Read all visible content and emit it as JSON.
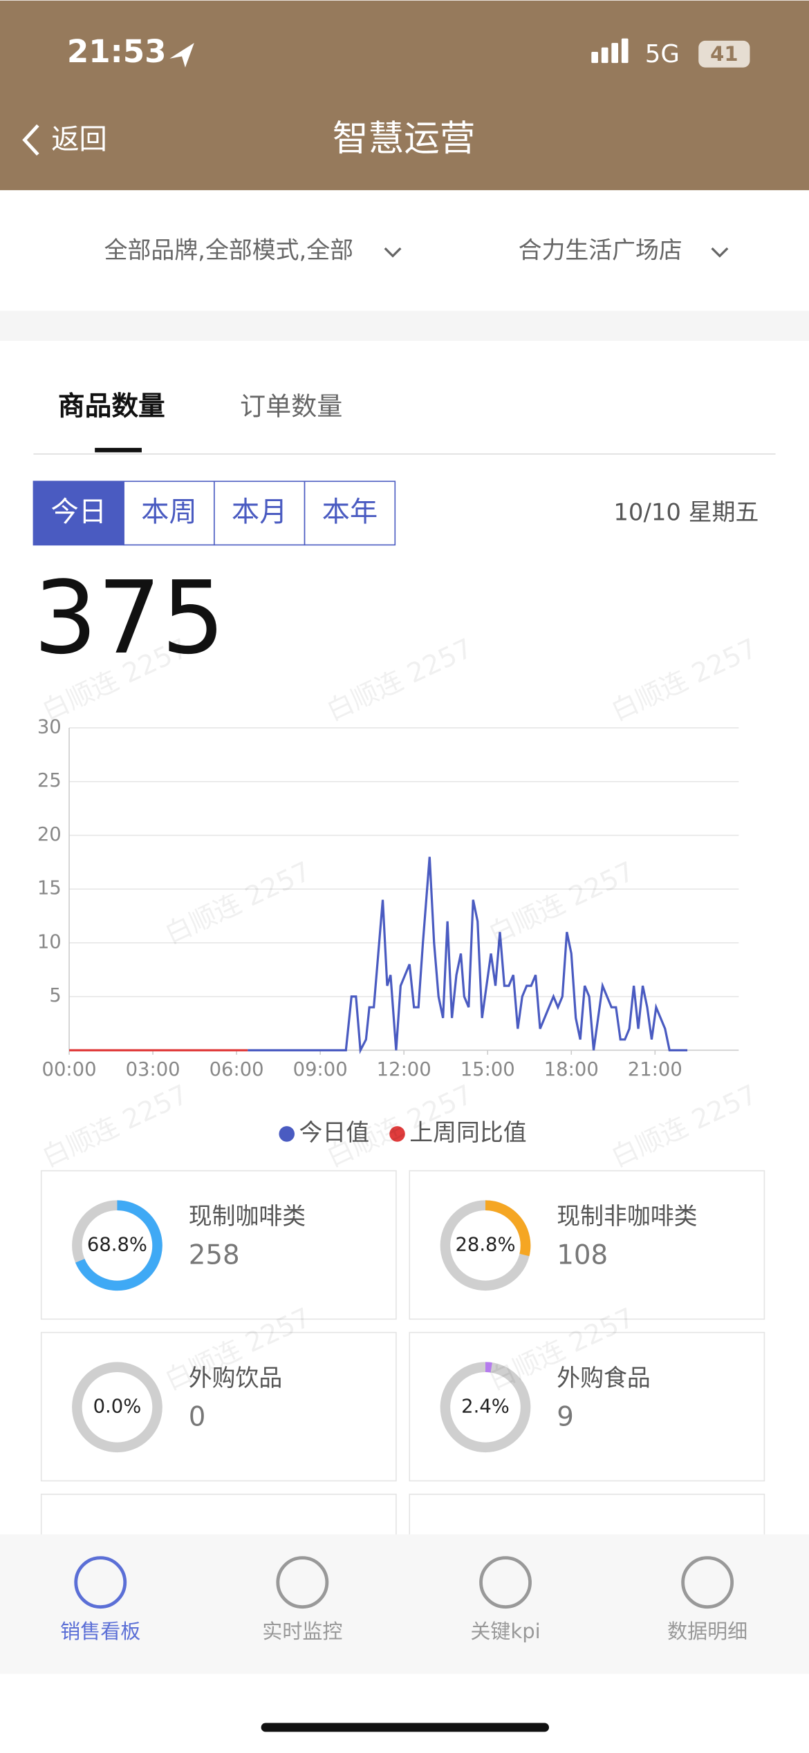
{
  "status_bar": {
    "time": "21:53",
    "network": "5G",
    "battery": "41"
  },
  "header": {
    "back": "返回",
    "title": "智慧运营"
  },
  "filters": [
    "全部品牌,全部模式,全部",
    "合力生活广场店"
  ],
  "tabs": [
    "商品数量",
    "订单数量"
  ],
  "periods": [
    "今日",
    "本周",
    "本月",
    "本年"
  ],
  "date": "10/10 星期五",
  "total": 375,
  "watermark": "白顺连 2257",
  "chart_data": {
    "type": "line",
    "xlim": [
      0,
      24
    ],
    "xticks": [
      {
        "value": 0,
        "label": "00:00"
      },
      {
        "value": 3,
        "label": "03:00"
      },
      {
        "value": 6,
        "label": "06:00"
      },
      {
        "value": 9,
        "label": "09:00"
      },
      {
        "value": 12,
        "label": "12:00"
      },
      {
        "value": 15,
        "label": "15:00"
      },
      {
        "value": 18,
        "label": "18:00"
      },
      {
        "value": 21,
        "label": "21:00"
      }
    ],
    "ylim": [
      0,
      30
    ],
    "yticks": [
      5,
      10,
      15,
      20,
      25,
      30
    ],
    "grid": true,
    "legend": "bottom",
    "series": [
      {
        "name": "今日值",
        "color": "#4a5bc1",
        "x": [
          6.4,
          9.92,
          10.12,
          10.28,
          10.44,
          10.64,
          10.76,
          10.92,
          11.08,
          11.24,
          11.4,
          11.52,
          11.72,
          11.88,
          12.04,
          12.2,
          12.36,
          12.52,
          12.68,
          12.92,
          13.08,
          13.24,
          13.4,
          13.56,
          13.72,
          13.88,
          14.04,
          14.16,
          14.32,
          14.48,
          14.64,
          14.8,
          14.96,
          15.12,
          15.28,
          15.44,
          15.6,
          15.76,
          15.92,
          16.08,
          16.24,
          16.4,
          16.56,
          16.72,
          16.88,
          17.04,
          17.2,
          17.36,
          17.52,
          17.68,
          17.84,
          18,
          18.16,
          18.32,
          18.48,
          18.64,
          18.8,
          18.96,
          19.12,
          19.28,
          19.44,
          19.6,
          19.76,
          19.92,
          20.08,
          20.24,
          20.4,
          20.56,
          20.72,
          20.88,
          21.04,
          21.2,
          21.36,
          21.52,
          22.16
        ],
        "values": [
          0,
          0,
          5,
          5,
          0,
          1,
          4,
          4,
          9,
          14,
          6,
          7,
          0,
          6,
          7,
          8,
          4,
          4,
          10,
          18,
          10,
          5,
          3,
          12,
          3,
          7,
          9,
          5,
          4,
          14,
          12,
          3,
          6,
          9,
          6,
          11,
          6,
          6,
          7,
          2,
          5,
          6,
          6,
          7,
          2,
          3,
          4,
          5,
          4,
          5,
          11,
          9,
          3,
          1,
          6,
          5,
          0,
          3,
          6,
          5,
          4,
          4,
          1,
          1,
          2,
          6,
          2,
          6,
          4,
          1,
          4,
          3,
          2,
          0,
          0
        ]
      },
      {
        "name": "上周同比值",
        "color": "#e03c3c",
        "x": [
          0,
          6.4
        ],
        "values": [
          0,
          0
        ]
      }
    ]
  },
  "cards": [
    {
      "name": "现制咖啡类",
      "percent": 68.8,
      "percent_label": "68.8%",
      "count": 258,
      "color": "#3fa9f5"
    },
    {
      "name": "现制非咖啡类",
      "percent": 28.8,
      "percent_label": "28.8%",
      "count": 108,
      "color": "#f5a623"
    },
    {
      "name": "外购饮品",
      "percent": 0.0,
      "percent_label": "0.0%",
      "count": 0,
      "color": "#b57bee"
    },
    {
      "name": "外购食品",
      "percent": 2.4,
      "percent_label": "2.4%",
      "count": 9,
      "color": "#b57bee"
    }
  ],
  "nav": [
    "销售看板",
    "实时监控",
    "关键kpi",
    "数据明细"
  ]
}
